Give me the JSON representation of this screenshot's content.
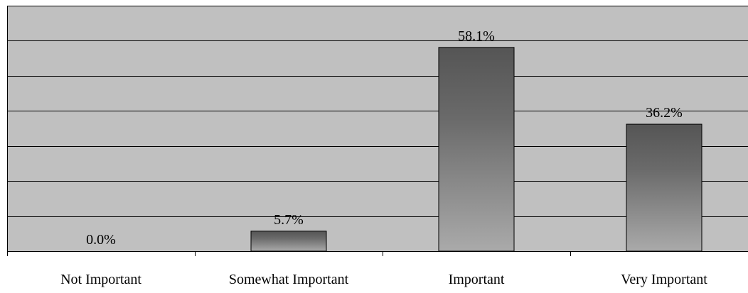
{
  "chart_data": {
    "type": "bar",
    "categories": [
      "Not Important",
      "Somewhat Important",
      "Important",
      "Very Important"
    ],
    "values": [
      0.0,
      5.7,
      58.1,
      36.2
    ],
    "value_labels": [
      "0.0%",
      "5.7%",
      "58.1%",
      "36.2%"
    ],
    "title": "",
    "xlabel": "",
    "ylabel": "",
    "ylim": [
      0,
      70
    ],
    "grid": true,
    "legend": "none",
    "colors": {
      "plot_background": "#c0c0c0",
      "bar_dark": "#555555",
      "bar_light": "#aaaaaa",
      "gridline": "#000000"
    }
  }
}
